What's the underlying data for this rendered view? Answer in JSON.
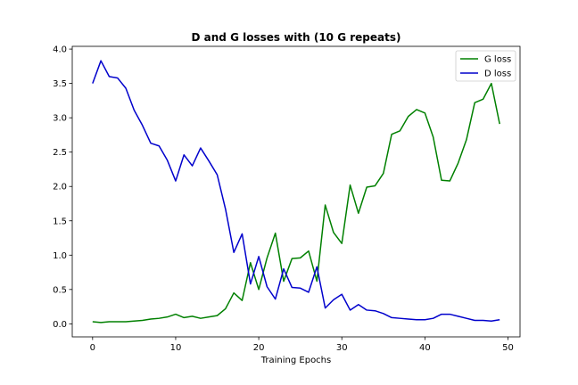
{
  "chart_data": {
    "type": "line",
    "title": "D and G losses with (10 G repeats)",
    "xlabel": "Training Epochs",
    "ylabel": "",
    "xlim": [
      -2.45,
      51.45
    ],
    "ylim": [
      -0.19,
      4.04
    ],
    "xticks": [
      0,
      10,
      20,
      30,
      40,
      50
    ],
    "yticks": [
      0.0,
      0.5,
      1.0,
      1.5,
      2.0,
      2.5,
      3.0,
      3.5,
      4.0
    ],
    "ytick_labels": [
      "0.0",
      "0.5",
      "1.0",
      "1.5",
      "2.0",
      "2.5",
      "3.0",
      "3.5",
      "4.0"
    ],
    "grid": false,
    "legend_position": "top-right",
    "x": [
      0,
      1,
      2,
      3,
      4,
      5,
      6,
      7,
      8,
      9,
      10,
      11,
      12,
      13,
      14,
      15,
      16,
      17,
      18,
      19,
      20,
      21,
      22,
      23,
      24,
      25,
      26,
      27,
      28,
      29,
      30,
      31,
      32,
      33,
      34,
      35,
      36,
      37,
      38,
      39,
      40,
      41,
      42,
      43,
      44,
      45,
      46,
      47,
      48,
      49
    ],
    "series": [
      {
        "name": "G loss",
        "color": "#008000",
        "values": [
          0.03,
          0.02,
          0.03,
          0.03,
          0.03,
          0.04,
          0.05,
          0.07,
          0.08,
          0.1,
          0.14,
          0.09,
          0.11,
          0.08,
          0.1,
          0.12,
          0.22,
          0.45,
          0.34,
          0.89,
          0.5,
          0.96,
          1.32,
          0.62,
          0.95,
          0.96,
          1.06,
          0.62,
          1.73,
          1.33,
          1.17,
          2.02,
          1.61,
          1.99,
          2.01,
          2.19,
          2.76,
          2.81,
          3.02,
          3.12,
          3.07,
          2.72,
          2.09,
          2.08,
          2.34,
          2.68,
          3.22,
          3.27,
          3.5,
          2.91
        ]
      },
      {
        "name": "D loss",
        "color": "#0000cc",
        "values": [
          3.5,
          3.83,
          3.6,
          3.58,
          3.43,
          3.11,
          2.89,
          2.63,
          2.59,
          2.38,
          2.08,
          2.46,
          2.3,
          2.56,
          2.37,
          2.17,
          1.67,
          1.04,
          1.31,
          0.58,
          0.98,
          0.54,
          0.36,
          0.8,
          0.53,
          0.52,
          0.46,
          0.83,
          0.23,
          0.35,
          0.43,
          0.2,
          0.28,
          0.2,
          0.19,
          0.15,
          0.09,
          0.08,
          0.07,
          0.06,
          0.06,
          0.08,
          0.14,
          0.14,
          0.11,
          0.08,
          0.05,
          0.05,
          0.04,
          0.06
        ]
      }
    ]
  }
}
